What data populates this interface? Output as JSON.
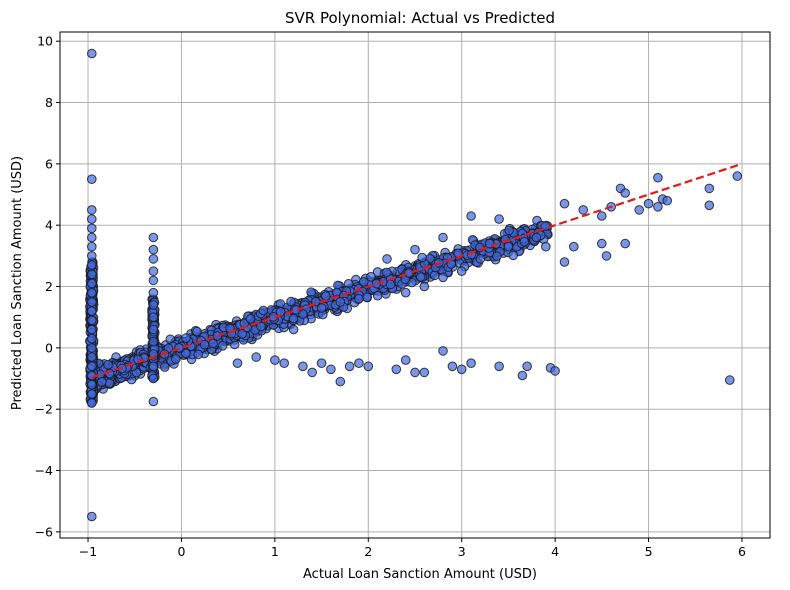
{
  "chart_data": {
    "type": "scatter",
    "title": "SVR Polynomial: Actual vs Predicted",
    "xlabel": "Actual Loan Sanction Amount (USD)",
    "ylabel": "Predicted Loan Sanction Amount (USD)",
    "xlim": [
      -1.3,
      6.3
    ],
    "ylim": [
      -6.2,
      10.3
    ],
    "x_ticks": [
      -1,
      0,
      1,
      2,
      3,
      4,
      5,
      6
    ],
    "y_ticks": [
      -6,
      -4,
      -2,
      0,
      2,
      4,
      6,
      8,
      10
    ],
    "x_tick_labels": [
      "−1",
      "0",
      "1",
      "2",
      "3",
      "4",
      "5",
      "6"
    ],
    "y_tick_labels": [
      "−6",
      "−4",
      "−2",
      "0",
      "2",
      "4",
      "6",
      "8",
      "10"
    ],
    "grid": true,
    "point_color": "#4169e1",
    "reference_line": {
      "x": [
        -0.96,
        5.96
      ],
      "y": [
        -0.96,
        5.96
      ],
      "color": "#e31a1c",
      "style": "dashed"
    },
    "series": [
      {
        "points": [
          [
            -0.96,
            9.6
          ],
          [
            -0.96,
            5.5
          ],
          [
            -0.96,
            -5.5
          ],
          [
            -0.96,
            4.5
          ],
          [
            -0.96,
            4.2
          ],
          [
            -0.96,
            3.9
          ],
          [
            -0.96,
            3.6
          ],
          [
            -0.96,
            3.3
          ],
          [
            -0.96,
            3.0
          ],
          [
            -0.96,
            2.7
          ],
          [
            -0.96,
            2.4
          ],
          [
            -0.96,
            2.1
          ],
          [
            -0.96,
            1.8
          ],
          [
            -0.96,
            1.5
          ],
          [
            -0.96,
            1.2
          ],
          [
            -0.96,
            0.9
          ],
          [
            -0.96,
            0.6
          ],
          [
            -0.96,
            0.3
          ],
          [
            -0.96,
            0.0
          ],
          [
            -0.96,
            -0.3
          ],
          [
            -0.96,
            -0.6
          ],
          [
            -0.96,
            -0.9
          ],
          [
            -0.96,
            -1.2
          ],
          [
            -0.96,
            -1.5
          ],
          [
            -0.96,
            -1.8
          ],
          [
            -0.3,
            3.6
          ],
          [
            -0.3,
            3.2
          ],
          [
            -0.3,
            2.9
          ],
          [
            -0.3,
            2.5
          ],
          [
            -0.3,
            2.2
          ],
          [
            -0.3,
            1.8
          ],
          [
            -0.3,
            1.4
          ],
          [
            -0.3,
            1.0
          ],
          [
            -0.3,
            0.6
          ],
          [
            -0.3,
            0.2
          ],
          [
            -0.3,
            -0.2
          ],
          [
            -0.3,
            -0.6
          ],
          [
            -0.3,
            -1.0
          ],
          [
            -0.3,
            -1.75
          ],
          [
            0.6,
            -0.5
          ],
          [
            0.8,
            -0.3
          ],
          [
            1.0,
            -0.4
          ],
          [
            1.1,
            -0.5
          ],
          [
            1.3,
            -0.6
          ],
          [
            1.4,
            -0.8
          ],
          [
            1.5,
            -0.5
          ],
          [
            1.6,
            -0.7
          ],
          [
            1.7,
            -1.1
          ],
          [
            1.8,
            -0.6
          ],
          [
            1.9,
            -0.5
          ],
          [
            2.0,
            -0.6
          ],
          [
            2.3,
            -0.7
          ],
          [
            2.4,
            -0.4
          ],
          [
            2.5,
            -0.8
          ],
          [
            2.6,
            -0.8
          ],
          [
            2.8,
            -0.1
          ],
          [
            2.9,
            -0.6
          ],
          [
            3.0,
            -0.7
          ],
          [
            3.1,
            -0.5
          ],
          [
            3.4,
            -0.6
          ],
          [
            3.65,
            -0.9
          ],
          [
            3.7,
            -0.6
          ],
          [
            3.95,
            -0.65
          ],
          [
            4.0,
            -0.75
          ],
          [
            5.87,
            -1.05
          ],
          [
            4.1,
            4.7
          ],
          [
            4.3,
            4.5
          ],
          [
            4.5,
            4.3
          ],
          [
            4.6,
            4.6
          ],
          [
            4.7,
            5.2
          ],
          [
            4.75,
            5.05
          ],
          [
            4.9,
            4.5
          ],
          [
            5.0,
            4.7
          ],
          [
            5.1,
            4.6
          ],
          [
            5.15,
            4.85
          ],
          [
            5.2,
            4.8
          ],
          [
            5.1,
            5.55
          ],
          [
            5.65,
            5.2
          ],
          [
            5.65,
            4.65
          ],
          [
            5.95,
            5.6
          ],
          [
            4.1,
            2.8
          ],
          [
            4.2,
            3.3
          ],
          [
            4.55,
            3.0
          ],
          [
            4.5,
            3.4
          ],
          [
            4.75,
            3.4
          ],
          [
            3.8,
            3.6
          ],
          [
            3.9,
            3.3
          ],
          [
            3.5,
            3.3
          ],
          [
            3.3,
            3.4
          ],
          [
            3.2,
            2.9
          ],
          [
            3.0,
            2.5
          ],
          [
            2.8,
            2.3
          ],
          [
            2.6,
            2.0
          ],
          [
            2.4,
            1.8
          ],
          [
            2.1,
            1.7
          ],
          [
            1.9,
            1.6
          ],
          [
            1.7,
            1.5
          ],
          [
            1.5,
            1.3
          ],
          [
            1.3,
            1.1
          ],
          [
            1.2,
            0.6
          ],
          [
            3.1,
            4.3
          ],
          [
            3.4,
            4.2
          ],
          [
            2.8,
            3.6
          ],
          [
            2.5,
            3.2
          ],
          [
            2.2,
            2.9
          ]
        ]
      }
    ]
  }
}
